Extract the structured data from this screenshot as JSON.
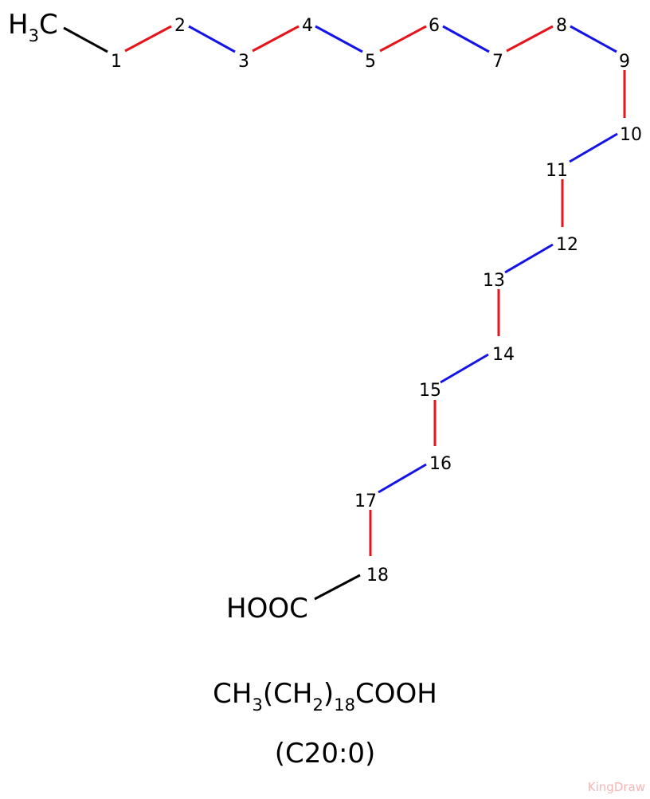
{
  "molecule": {
    "methyl_label": [
      "H",
      "3",
      "C"
    ],
    "carboxyl_label": "HOOC",
    "atoms": [
      "1",
      "2",
      "3",
      "4",
      "5",
      "6",
      "7",
      "8",
      "9",
      "10",
      "11",
      "12",
      "13",
      "14",
      "15",
      "16",
      "17",
      "18"
    ]
  },
  "formula": [
    "CH",
    "3",
    "(CH",
    "2",
    ")",
    "18",
    "COOH"
  ],
  "shorthand": "(C20:0)",
  "watermark": "KingDraw"
}
